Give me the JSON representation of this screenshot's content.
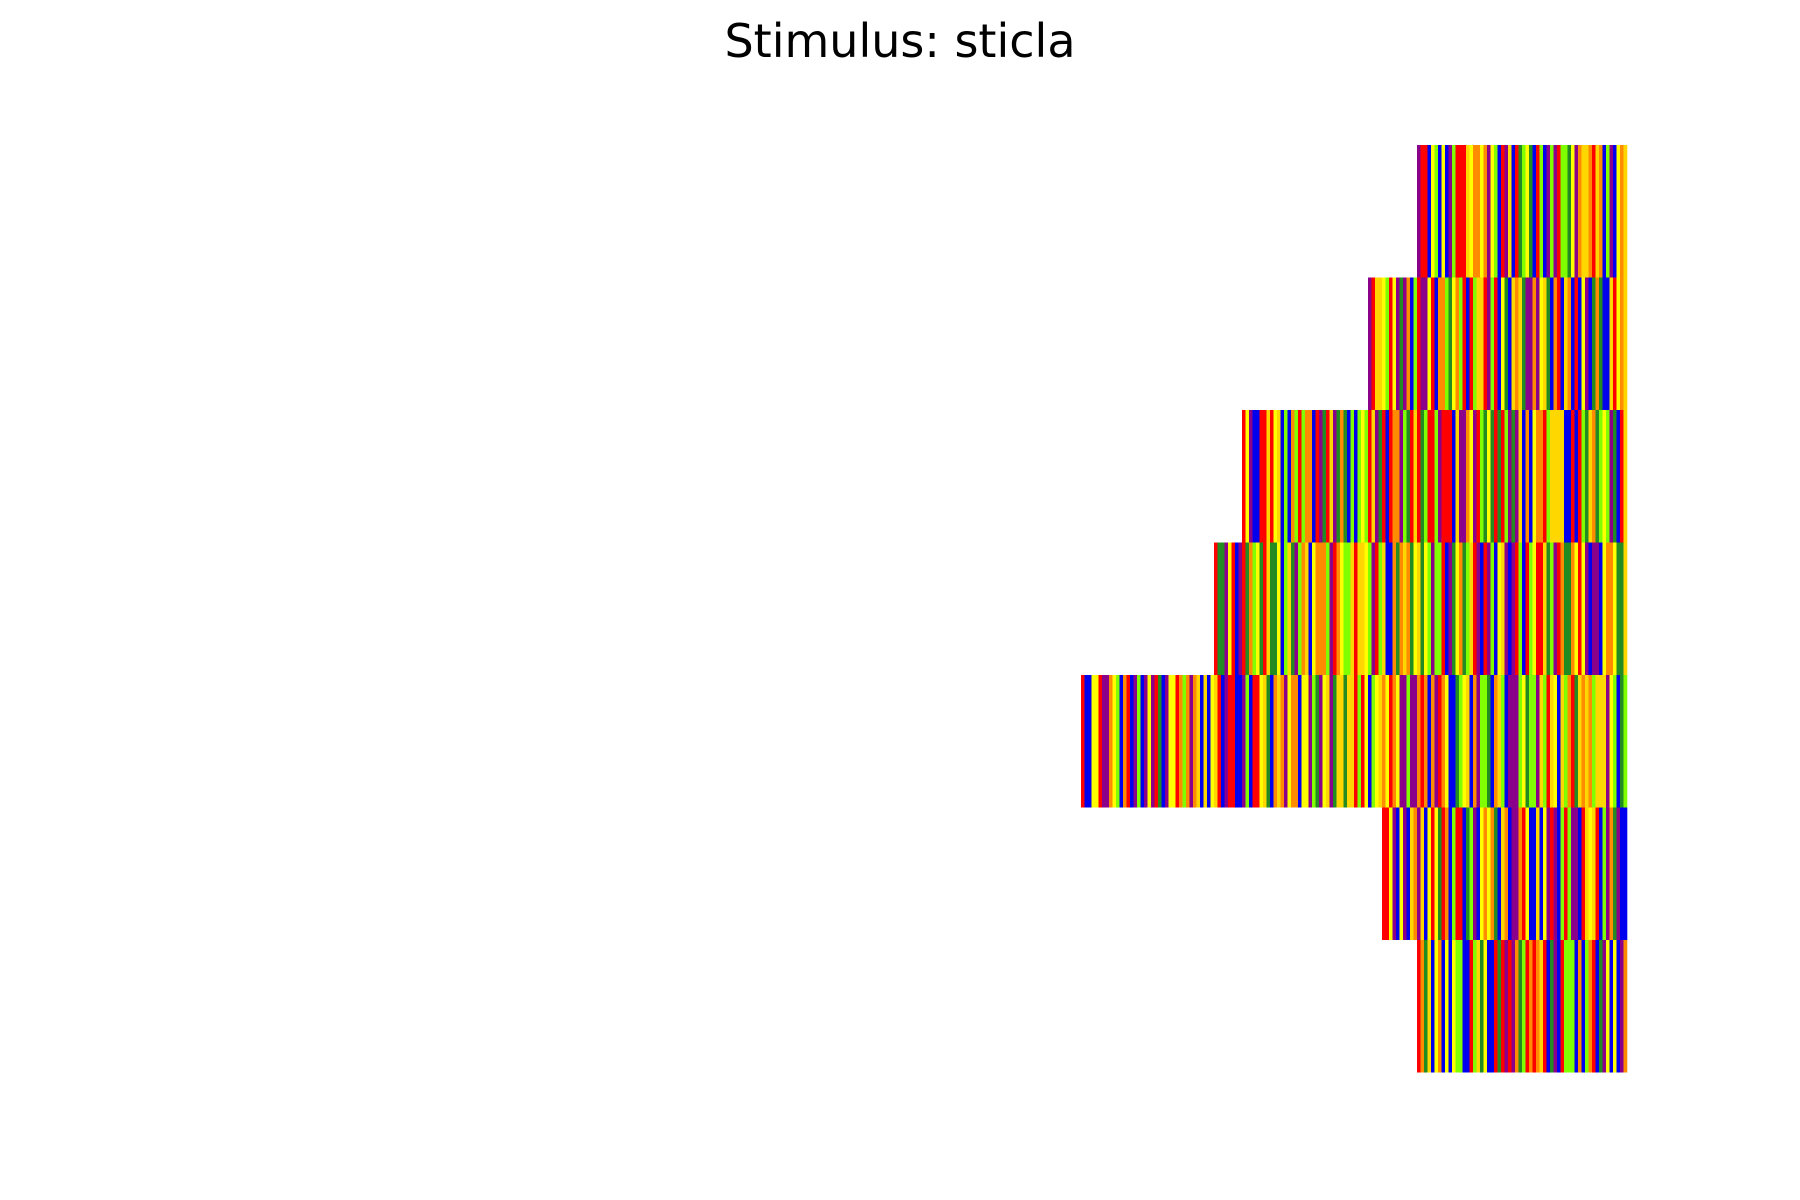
{
  "chart_data": {
    "type": "heatmap",
    "title": "Stimulus: sticla",
    "xlabel": "",
    "ylabel": "",
    "axes_visible": false,
    "grid": false,
    "alignment": "right",
    "palette": [
      "#0000ee",
      "#8b008b",
      "#ff0000",
      "#ff8c00",
      "#ffd700",
      "#ffff00",
      "#7fff00",
      "#228b22"
    ],
    "rows": [
      {
        "stripes": 60,
        "seed": 11
      },
      {
        "stripes": 74,
        "seed": 23
      },
      {
        "stripes": 110,
        "seed": 37
      },
      {
        "stripes": 118,
        "seed": 41
      },
      {
        "stripes": 156,
        "seed": 53
      },
      {
        "stripes": 70,
        "seed": 67
      },
      {
        "stripes": 60,
        "seed": 79
      }
    ]
  }
}
